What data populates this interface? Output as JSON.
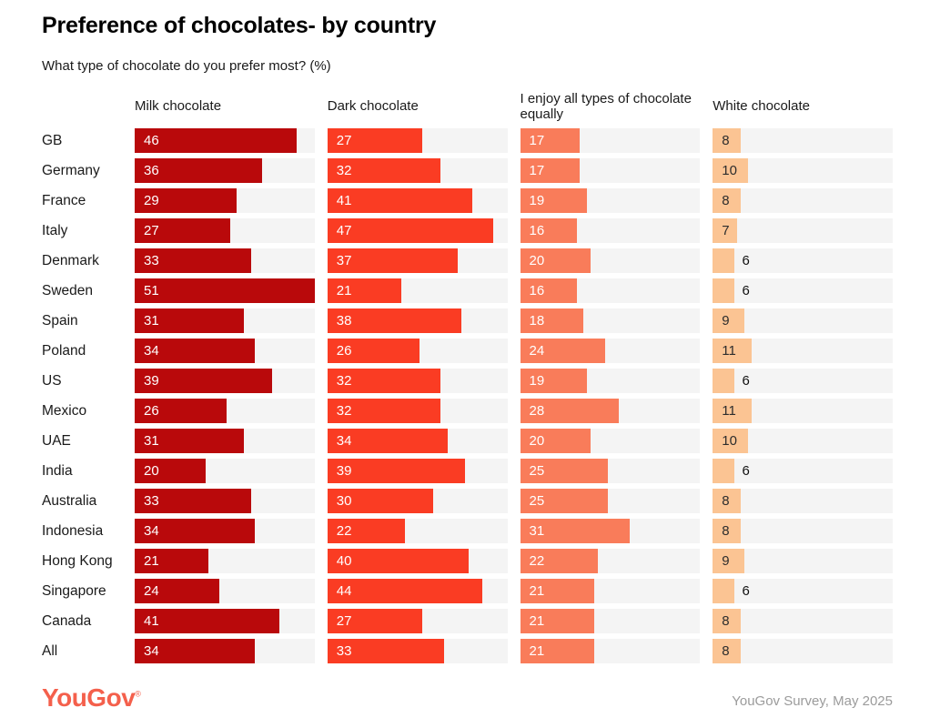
{
  "page": {
    "title": "Preference of chocolates- by country",
    "subtitle": "What type of chocolate do you prefer most? (%)",
    "footer": {
      "logo_text": "YouGov",
      "logo_mark": "®",
      "source_text": "YouGov Survey, May 2025"
    }
  },
  "colors": {
    "milk_chocolate_bar": "#b9090b",
    "dark_chocolate_bar": "#fa3c23",
    "all_types_bar": "#f97c5a",
    "white_chocolate_bar": "#fbc493",
    "track_background": "#f4f4f4",
    "logo": "#f4604c",
    "source_text": "#9b9b9b"
  },
  "chart_data": {
    "type": "bar",
    "orientation": "horizontal",
    "title": "Preference of chocolates- by country",
    "subtitle": "What type of chocolate do you prefer most? (%)",
    "value_unit": "%",
    "xlim": [
      0,
      51
    ],
    "grid": false,
    "legend_position": "column-headers-top",
    "categories": [
      "GB",
      "Germany",
      "France",
      "Italy",
      "Denmark",
      "Sweden",
      "Spain",
      "Poland",
      "US",
      "Mexico",
      "UAE",
      "India",
      "Australia",
      "Indonesia",
      "Hong Kong",
      "Singapore",
      "Canada",
      "All"
    ],
    "series": [
      {
        "name": "Milk chocolate",
        "color": "#b9090b",
        "label_color": "#ffffff",
        "values": [
          46,
          36,
          29,
          27,
          33,
          51,
          31,
          34,
          39,
          26,
          31,
          20,
          33,
          34,
          21,
          24,
          41,
          34
        ]
      },
      {
        "name": "Dark chocolate",
        "color": "#fa3c23",
        "label_color": "#ffffff",
        "values": [
          27,
          32,
          41,
          47,
          37,
          21,
          38,
          26,
          32,
          32,
          34,
          39,
          30,
          22,
          40,
          44,
          27,
          33
        ]
      },
      {
        "name": "I enjoy all types of chocolate equally",
        "color": "#f97c5a",
        "label_color": "#ffffff",
        "values": [
          17,
          17,
          19,
          16,
          20,
          16,
          18,
          24,
          19,
          28,
          20,
          25,
          25,
          31,
          22,
          21,
          21,
          21
        ]
      },
      {
        "name": "White chocolate",
        "color": "#fbc493",
        "label_color": "#2d2d2d",
        "values": [
          8,
          10,
          8,
          7,
          6,
          6,
          9,
          11,
          6,
          11,
          10,
          6,
          8,
          8,
          9,
          6,
          8,
          8
        ]
      }
    ]
  }
}
